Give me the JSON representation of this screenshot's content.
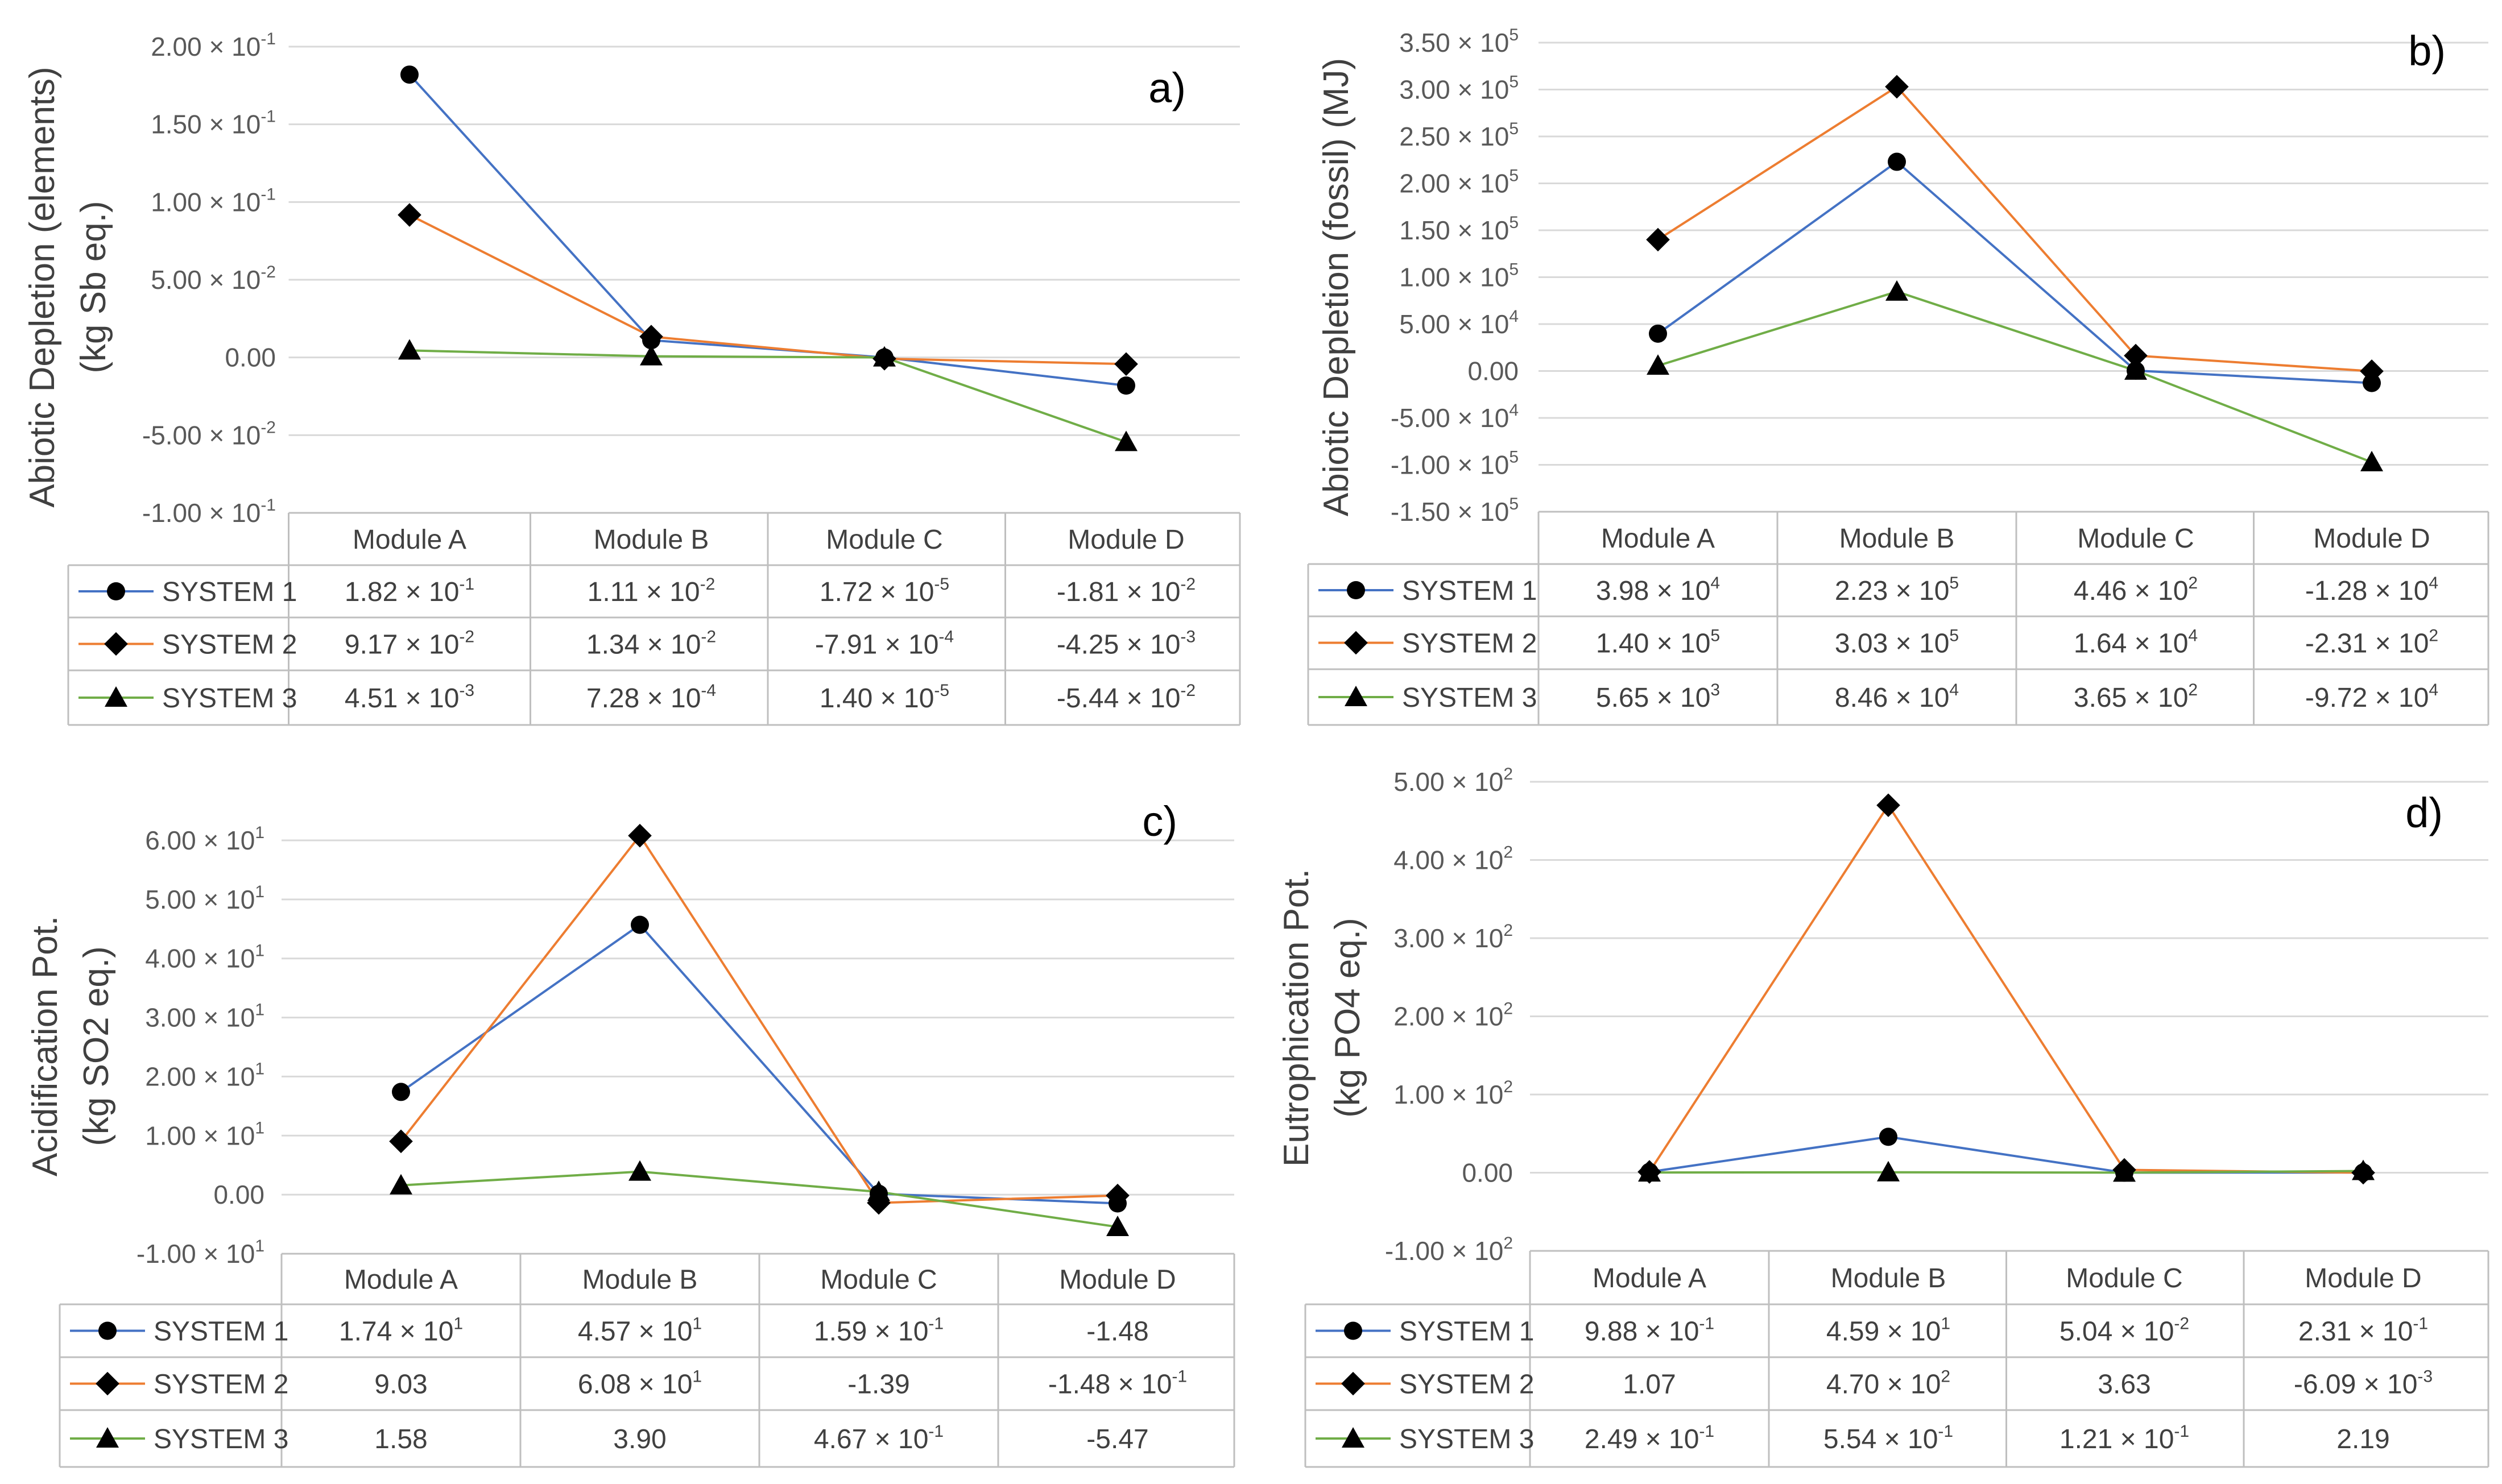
{
  "chart_data": [
    {
      "type": "line",
      "panel": "a)",
      "ylabel_lines": [
        "Abiotic Depletion (elements)",
        "(kg Sb eq.)"
      ],
      "ylim": [
        -0.1,
        0.2
      ],
      "yticks": [
        {
          "value": 0.2,
          "base": "2.00 × 10",
          "exp": "-1"
        },
        {
          "value": 0.15,
          "base": "1.50 × 10",
          "exp": "-1"
        },
        {
          "value": 0.1,
          "base": "1.00 × 10",
          "exp": "-1"
        },
        {
          "value": 0.05,
          "base": "5.00 × 10",
          "exp": "-2"
        },
        {
          "value": 0,
          "base": "0.00",
          "exp": ""
        },
        {
          "value": -0.05,
          "base": "-5.00 × 10",
          "exp": "-2"
        },
        {
          "value": -0.1,
          "base": "-1.00 × 10",
          "exp": "-1"
        }
      ],
      "categories": [
        "Module A",
        "Module B",
        "Module C",
        "Module D"
      ],
      "series": [
        {
          "name": "SYSTEM 1",
          "color": "#4472c4",
          "marker": "circle",
          "values": [
            0.182,
            0.0111,
            1.72e-05,
            -0.0181
          ],
          "labels": [
            [
              "1.82 × 10",
              "-1"
            ],
            [
              "1.11 × 10",
              "-2"
            ],
            [
              "1.72 × 10",
              "-5"
            ],
            [
              "-1.81 × 10",
              "-2"
            ]
          ]
        },
        {
          "name": "SYSTEM 2",
          "color": "#ed7d31",
          "marker": "diamond",
          "values": [
            0.0917,
            0.0134,
            -0.000791,
            -0.00425
          ],
          "labels": [
            [
              "9.17 × 10",
              "-2"
            ],
            [
              "1.34 × 10",
              "-2"
            ],
            [
              "-7.91 × 10",
              "-4"
            ],
            [
              "-4.25 × 10",
              "-3"
            ]
          ]
        },
        {
          "name": "SYSTEM 3",
          "color": "#70ad47",
          "marker": "triangle",
          "values": [
            0.00451,
            0.000728,
            1.4e-05,
            -0.0544
          ],
          "labels": [
            [
              "4.51 × 10",
              "-3"
            ],
            [
              "7.28 × 10",
              "-4"
            ],
            [
              "1.40 × 10",
              "-5"
            ],
            [
              "-5.44 × 10",
              "-2"
            ]
          ]
        }
      ]
    },
    {
      "type": "line",
      "panel": "b)",
      "ylabel_lines": [
        "Abiotic Depletion (fossil) (MJ)"
      ],
      "ylim": [
        -150000,
        350000
      ],
      "yticks": [
        {
          "value": 350000,
          "base": "3.50 × 10",
          "exp": "5"
        },
        {
          "value": 300000,
          "base": "3.00 × 10",
          "exp": "5"
        },
        {
          "value": 250000,
          "base": "2.50 × 10",
          "exp": "5"
        },
        {
          "value": 200000,
          "base": "2.00 × 10",
          "exp": "5"
        },
        {
          "value": 150000,
          "base": "1.50 × 10",
          "exp": "5"
        },
        {
          "value": 100000,
          "base": "1.00 × 10",
          "exp": "5"
        },
        {
          "value": 50000,
          "base": "5.00 × 10",
          "exp": "4"
        },
        {
          "value": 0,
          "base": "0.00",
          "exp": ""
        },
        {
          "value": -50000,
          "base": "-5.00 × 10",
          "exp": "4"
        },
        {
          "value": -100000,
          "base": "-1.00 × 10",
          "exp": "5"
        },
        {
          "value": -150000,
          "base": "-1.50 × 10",
          "exp": "5"
        }
      ],
      "categories": [
        "Module A",
        "Module B",
        "Module C",
        "Module D"
      ],
      "series": [
        {
          "name": "SYSTEM 1",
          "color": "#4472c4",
          "marker": "circle",
          "values": [
            39800,
            223000,
            446,
            -12800
          ],
          "labels": [
            [
              "3.98 × 10",
              "4"
            ],
            [
              "2.23 × 10",
              "5"
            ],
            [
              "4.46 × 10",
              "2"
            ],
            [
              "-1.28 × 10",
              "4"
            ]
          ]
        },
        {
          "name": "SYSTEM 2",
          "color": "#ed7d31",
          "marker": "diamond",
          "values": [
            140000,
            303000,
            16400,
            -231
          ],
          "labels": [
            [
              "1.40 × 10",
              "5"
            ],
            [
              "3.03 × 10",
              "5"
            ],
            [
              "1.64 × 10",
              "4"
            ],
            [
              "-2.31 × 10",
              "2"
            ]
          ]
        },
        {
          "name": "SYSTEM 3",
          "color": "#70ad47",
          "marker": "triangle",
          "values": [
            5650,
            84600,
            365,
            -97200
          ],
          "labels": [
            [
              "5.65 × 10",
              "3"
            ],
            [
              "8.46 × 10",
              "4"
            ],
            [
              "3.65 × 10",
              "2"
            ],
            [
              "-9.72 × 10",
              "4"
            ]
          ]
        }
      ]
    },
    {
      "type": "line",
      "panel": "c)",
      "ylabel_lines": [
        "Acidification Pot.",
        "(kg SO2 eq.)"
      ],
      "ylim": [
        -10,
        60
      ],
      "yticks": [
        {
          "value": 60,
          "base": "6.00 × 10",
          "exp": "1"
        },
        {
          "value": 50,
          "base": "5.00 × 10",
          "exp": "1"
        },
        {
          "value": 40,
          "base": "4.00 × 10",
          "exp": "1"
        },
        {
          "value": 30,
          "base": "3.00 × 10",
          "exp": "1"
        },
        {
          "value": 20,
          "base": "2.00 × 10",
          "exp": "1"
        },
        {
          "value": 10,
          "base": "1.00 × 10",
          "exp": "1"
        },
        {
          "value": 0,
          "base": "0.00",
          "exp": ""
        },
        {
          "value": -10,
          "base": "-1.00 × 10",
          "exp": "1"
        }
      ],
      "categories": [
        "Module A",
        "Module B",
        "Module C",
        "Module D"
      ],
      "series": [
        {
          "name": "SYSTEM 1",
          "color": "#4472c4",
          "marker": "circle",
          "values": [
            17.4,
            45.7,
            0.159,
            -1.48
          ],
          "labels": [
            [
              "1.74 × 10",
              "1"
            ],
            [
              "4.57 × 10",
              "1"
            ],
            [
              "1.59 × 10",
              "-1"
            ],
            [
              "-1.48",
              ""
            ]
          ]
        },
        {
          "name": "SYSTEM 2",
          "color": "#ed7d31",
          "marker": "diamond",
          "values": [
            9.03,
            60.8,
            -1.39,
            -0.148
          ],
          "labels": [
            [
              "9.03",
              ""
            ],
            [
              "6.08 × 10",
              "1"
            ],
            [
              "-1.39",
              ""
            ],
            [
              "-1.48 × 10",
              "-1"
            ]
          ]
        },
        {
          "name": "SYSTEM 3",
          "color": "#70ad47",
          "marker": "triangle",
          "values": [
            1.58,
            3.9,
            0.467,
            -5.47
          ],
          "labels": [
            [
              "1.58",
              ""
            ],
            [
              "3.90",
              ""
            ],
            [
              "4.67 × 10",
              "-1"
            ],
            [
              "-5.47",
              ""
            ]
          ]
        }
      ]
    },
    {
      "type": "line",
      "panel": "d)",
      "ylabel_lines": [
        "Eutrophication Pot.",
        "(kg PO4 eq.)"
      ],
      "ylim": [
        -100,
        500
      ],
      "yticks": [
        {
          "value": 500,
          "base": "5.00 × 10",
          "exp": "2"
        },
        {
          "value": 400,
          "base": "4.00 × 10",
          "exp": "2"
        },
        {
          "value": 300,
          "base": "3.00 × 10",
          "exp": "2"
        },
        {
          "value": 200,
          "base": "2.00 × 10",
          "exp": "2"
        },
        {
          "value": 100,
          "base": "1.00 × 10",
          "exp": "2"
        },
        {
          "value": 0,
          "base": "0.00",
          "exp": ""
        },
        {
          "value": -100,
          "base": "-1.00 × 10",
          "exp": "2"
        }
      ],
      "categories": [
        "Module A",
        "Module B",
        "Module C",
        "Module D"
      ],
      "series": [
        {
          "name": "SYSTEM 1",
          "color": "#4472c4",
          "marker": "circle",
          "values": [
            0.988,
            45.9,
            0.0504,
            0.231
          ],
          "labels": [
            [
              "9.88 × 10",
              "-1"
            ],
            [
              "4.59 × 10",
              "1"
            ],
            [
              "5.04 × 10",
              "-2"
            ],
            [
              "2.31 × 10",
              "-1"
            ]
          ]
        },
        {
          "name": "SYSTEM 2",
          "color": "#ed7d31",
          "marker": "diamond",
          "values": [
            1.07,
            470,
            3.63,
            -0.00609
          ],
          "labels": [
            [
              "1.07",
              ""
            ],
            [
              "4.70 × 10",
              "2"
            ],
            [
              "3.63",
              ""
            ],
            [
              "-6.09 × 10",
              "-3"
            ]
          ]
        },
        {
          "name": "SYSTEM 3",
          "color": "#70ad47",
          "marker": "triangle",
          "values": [
            0.249,
            0.554,
            0.121,
            2.19
          ],
          "labels": [
            [
              "2.49 × 10",
              "-1"
            ],
            [
              "5.54 × 10",
              "-1"
            ],
            [
              "1.21 × 10",
              "-1"
            ],
            [
              "2.19",
              ""
            ]
          ]
        }
      ]
    }
  ]
}
